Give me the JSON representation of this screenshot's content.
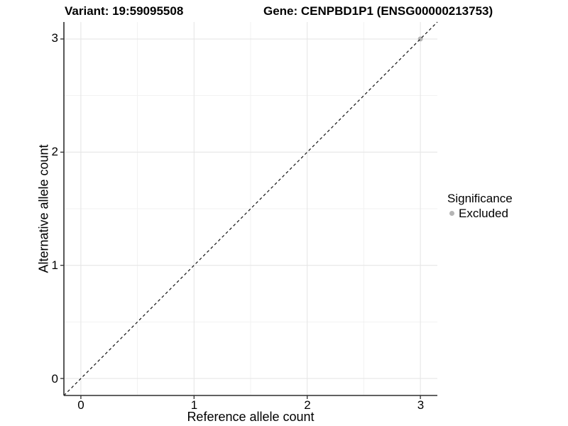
{
  "titles": {
    "variant": "Variant: 19:59095508",
    "gene": "Gene: CENPBD1P1 (ENSG00000213753)"
  },
  "chart_data": {
    "type": "scatter",
    "title_left": "Variant: 19:59095508",
    "title_right": "Gene: CENPBD1P1 (ENSG00000213753)",
    "xlabel": "Reference allele count",
    "ylabel": "Alternative allele count",
    "xlim": [
      -0.15,
      3.15
    ],
    "ylim": [
      -0.15,
      3.15
    ],
    "x_major_ticks": [
      0,
      1,
      2,
      3
    ],
    "y_major_ticks": [
      0,
      1,
      2,
      3
    ],
    "x_minor_ticks": [
      0.5,
      1.5,
      2.5
    ],
    "y_minor_ticks": [
      0.5,
      1.5,
      2.5
    ],
    "grid": true,
    "legend_position": "right",
    "reference_line": {
      "slope": 1,
      "intercept": 0,
      "style": "dashed",
      "color": "#111111"
    },
    "series": [
      {
        "name": "Excluded",
        "color": "#b5b5b5",
        "points": [
          {
            "x": 3,
            "y": 3
          }
        ]
      }
    ],
    "legend": {
      "title": "Significance",
      "items": [
        {
          "label": "Excluded",
          "color": "#b5b5b5"
        }
      ]
    },
    "colors": {
      "grid_major": "#e6e6e6",
      "grid_minor": "#f1f1f1",
      "axis_line": "#2f2f2f",
      "tick_mark": "#2f2f2f"
    }
  }
}
